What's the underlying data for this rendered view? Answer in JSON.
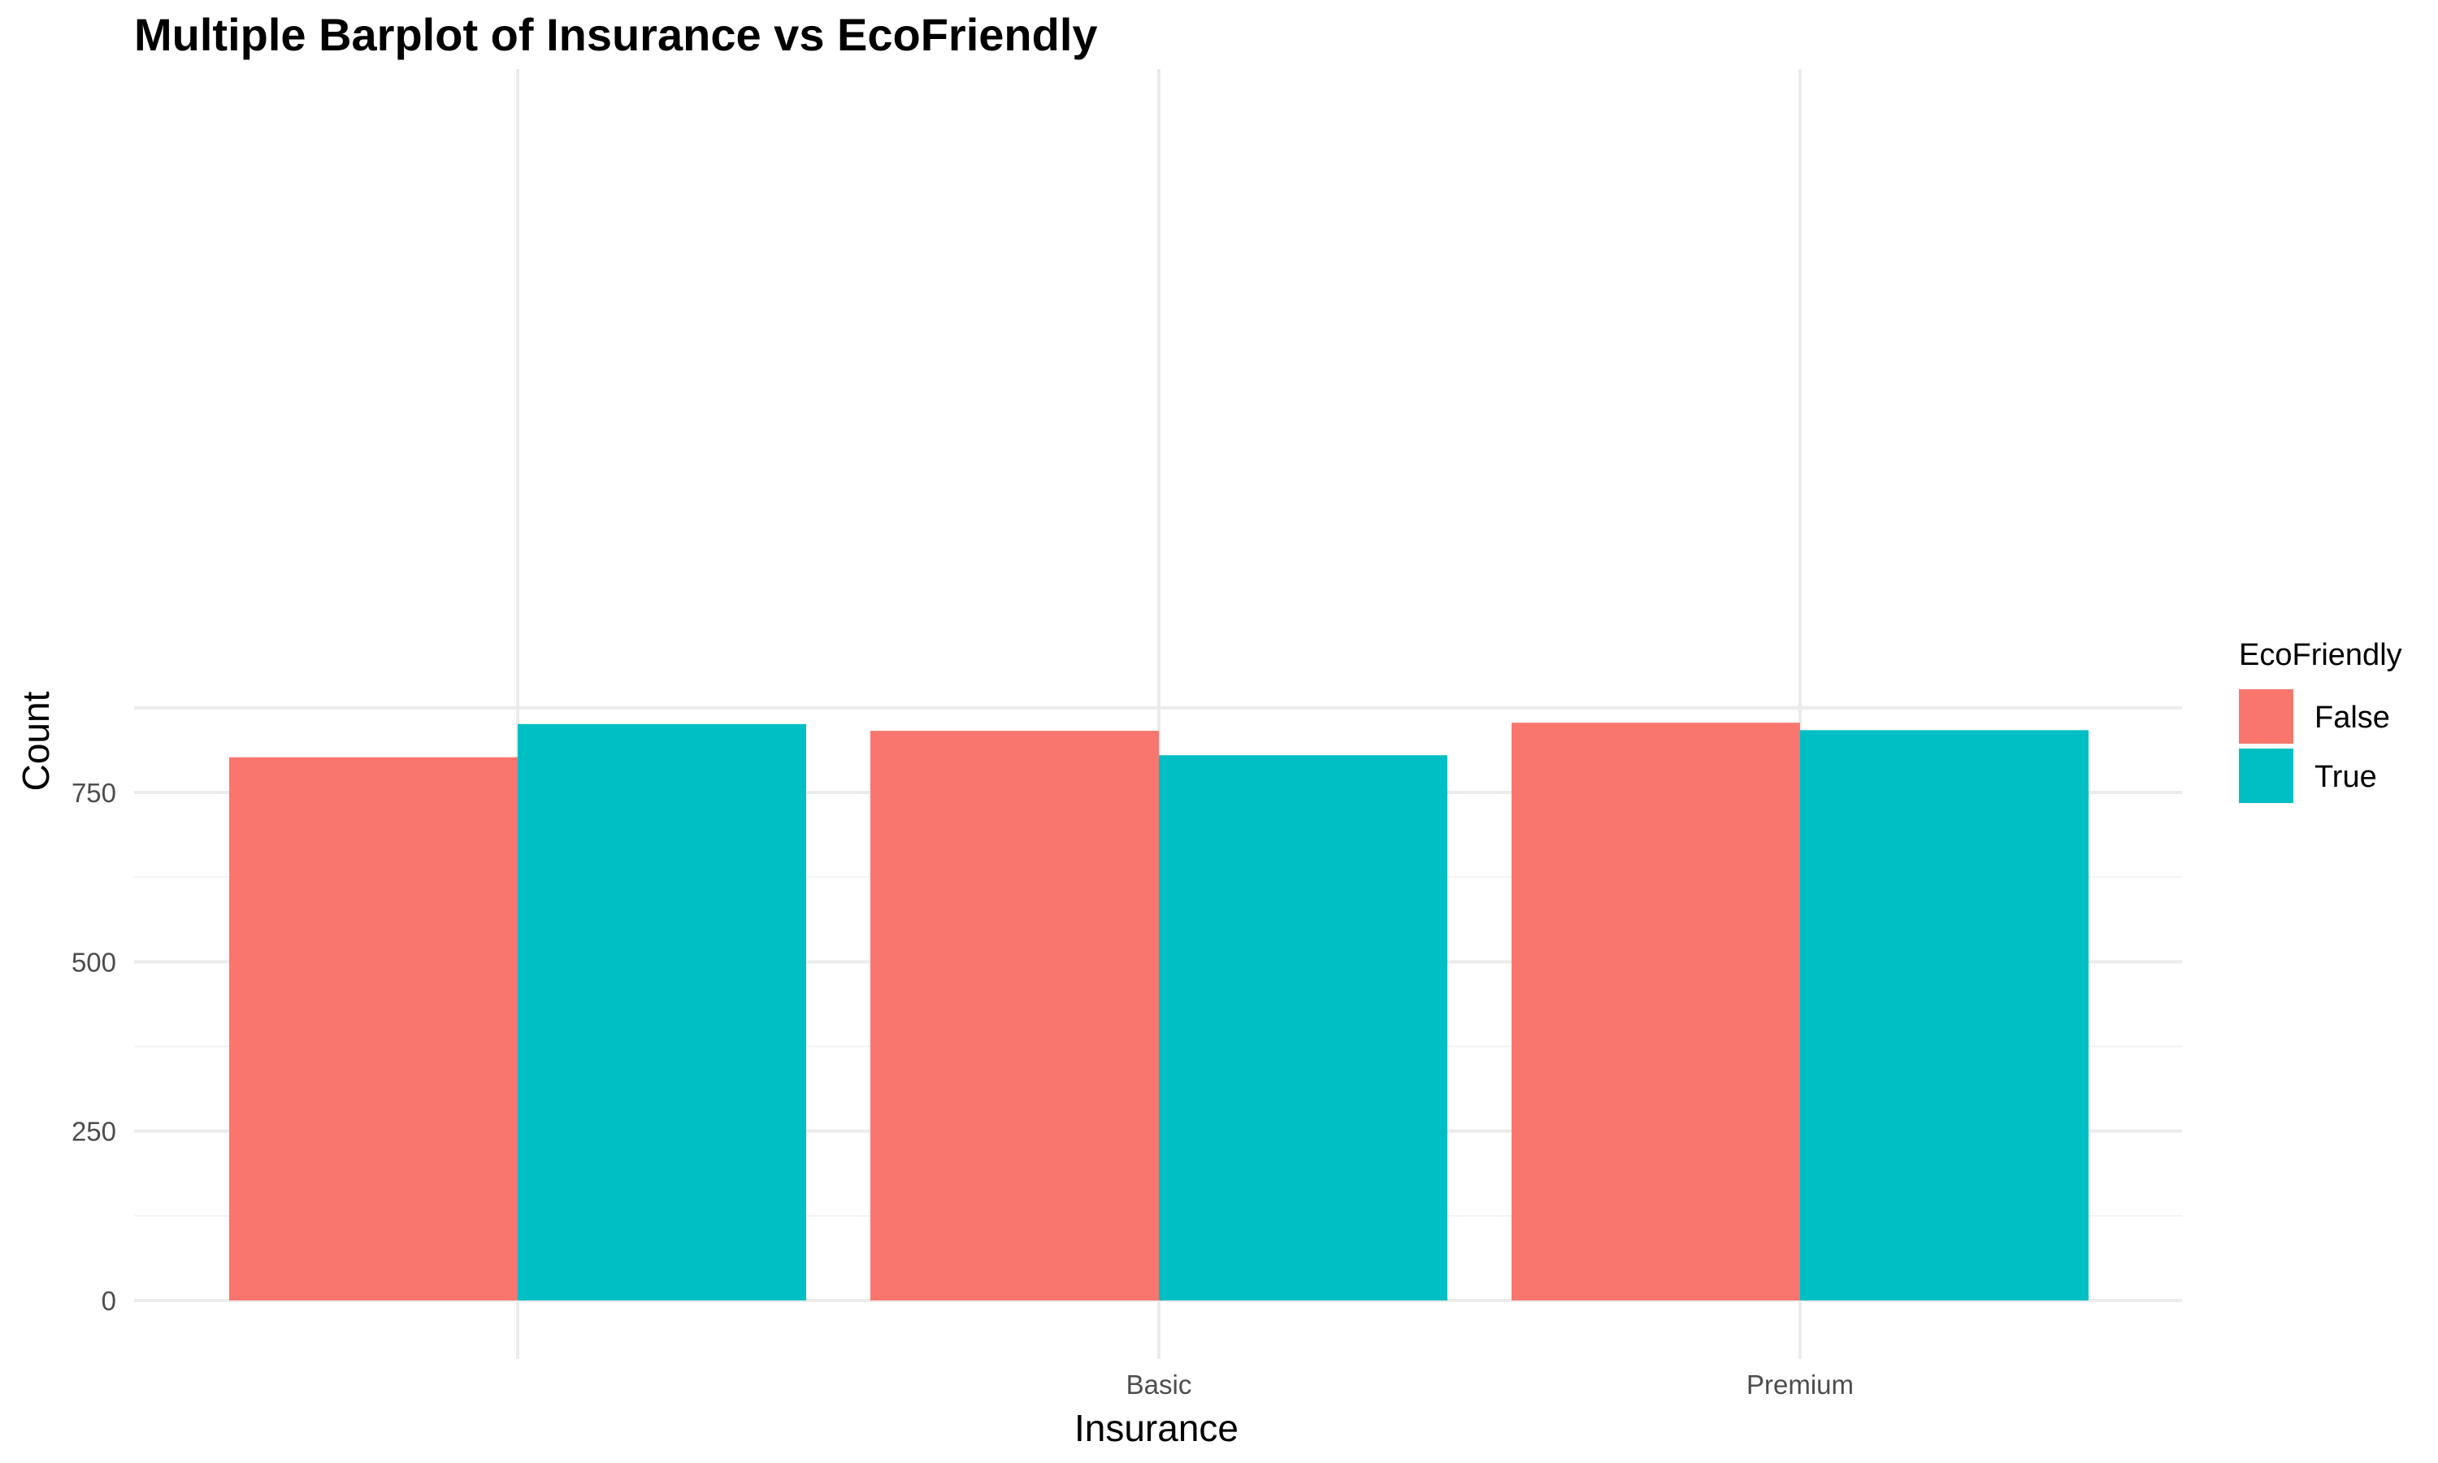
{
  "chart_data": {
    "type": "bar",
    "title": "Multiple Barplot of Insurance vs EcoFriendly",
    "xlabel": "Insurance",
    "ylabel": "Count",
    "categories": [
      "",
      "Basic",
      "Premium"
    ],
    "series": [
      {
        "name": "False",
        "color": "#F8766D",
        "values": [
          802,
          841,
          853
        ]
      },
      {
        "name": "True",
        "color": "#00BFC4",
        "values": [
          851,
          805,
          842
        ]
      }
    ],
    "ylim": [
      0,
      875
    ],
    "yticks": [
      0,
      250,
      500,
      750
    ],
    "legend": {
      "title": "EcoFriendly",
      "position": "right"
    },
    "grid": true
  }
}
